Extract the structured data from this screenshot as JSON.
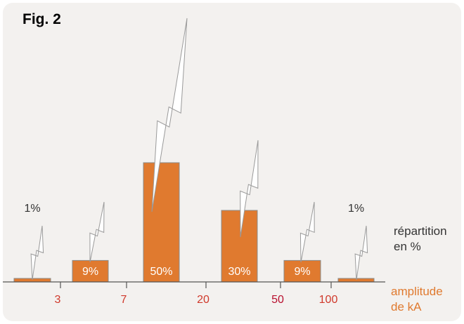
{
  "chart_data": {
    "type": "bar",
    "title": "Fig. 2",
    "categories": [
      "<3",
      "3-7",
      "7-20",
      "20-50",
      "50-100",
      ">100"
    ],
    "values": [
      1,
      9,
      50,
      30,
      9,
      1
    ],
    "value_labels": [
      "1%",
      "9%",
      "50%",
      "30%",
      "9%",
      "1%"
    ],
    "x_ticks": [
      "3",
      "7",
      "20",
      "50",
      "100"
    ],
    "ylabel": [
      "répartition",
      "en %"
    ],
    "xlabel": [
      "amplitude",
      "de kA"
    ],
    "ylim": [
      0,
      55
    ],
    "grid": false,
    "legend": "none"
  },
  "colors": {
    "bar": "#e07a2f",
    "bar_edge": "#8a8a8a",
    "tick_label": "#d0392b",
    "tick_label_50": "#b8102f",
    "xlabel": "#e07a2f",
    "panel": "#f3f1ef",
    "bolt_stroke": "#9a9a9a"
  },
  "icons": [
    "lightning-bolt-icon"
  ]
}
